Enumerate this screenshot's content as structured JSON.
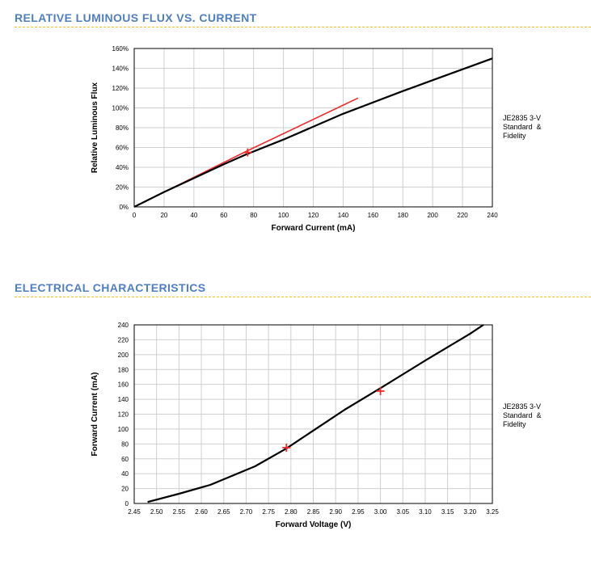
{
  "sections": {
    "flux_title": "RELATIVE LUMINOUS FLUX VS. CURRENT",
    "electrical_title": "ELECTRICAL CHARACTERISTICS"
  },
  "colors": {
    "title": "#4f7fc3",
    "rule": "#f3c21c",
    "series": "#000000",
    "reference": "#ee2b2b"
  },
  "chart_data": [
    {
      "type": "line",
      "xlabel": "Forward Current (mA)",
      "ylabel": "Relative Luminous Flux",
      "xlim": [
        0,
        240
      ],
      "ylim": [
        0,
        160
      ],
      "x_ticks": [
        0,
        20,
        40,
        60,
        80,
        100,
        120,
        140,
        160,
        180,
        200,
        220,
        240
      ],
      "y_ticks": [
        0,
        20,
        40,
        60,
        80,
        100,
        120,
        140,
        160
      ],
      "y_tick_labels": [
        "0%",
        "20%",
        "40%",
        "60%",
        "80%",
        "100%",
        "120%",
        "140%",
        "160%"
      ],
      "grid": true,
      "legend_position": "right",
      "legend_text": "JE2835 3-V\nStandard  &\nFidelity",
      "series": [
        {
          "name": "JE2835 3-V Standard & Fidelity",
          "x": [
            0,
            20,
            40,
            60,
            75,
            100,
            140,
            180,
            200,
            240
          ],
          "y": [
            0,
            15,
            29,
            43,
            53,
            68,
            94,
            117,
            128,
            150
          ]
        },
        {
          "x": [
            0,
            75,
            150
          ],
          "y": [
            0,
            56,
            110
          ]
        }
      ],
      "markers": [
        {
          "x": 76,
          "y": 55
        }
      ]
    },
    {
      "type": "line",
      "xlabel": "Forward Voltage (V)",
      "ylabel": "Forward Current (mA)",
      "xlim": [
        2.45,
        3.25
      ],
      "ylim": [
        0,
        240
      ],
      "x_ticks": [
        2.45,
        2.5,
        2.55,
        2.6,
        2.65,
        2.7,
        2.75,
        2.8,
        2.85,
        2.9,
        2.95,
        3.0,
        3.05,
        3.1,
        3.15,
        3.2,
        3.25
      ],
      "x_tick_labels": [
        "2.45",
        "2.50",
        "2.55",
        "2.60",
        "2.65",
        "2.70",
        "2.75",
        "2.80",
        "2.85",
        "2.90",
        "2.95",
        "3.00",
        "3.05",
        "3.10",
        "3.15",
        "3.20",
        "3.25"
      ],
      "y_ticks": [
        0,
        20,
        40,
        60,
        80,
        100,
        120,
        140,
        160,
        180,
        200,
        220,
        240
      ],
      "y_tick_labels": [
        "0",
        "20",
        "40",
        "60",
        "80",
        "100",
        "120",
        "140",
        "160",
        "180",
        "200",
        "220",
        "240"
      ],
      "grid": true,
      "legend_position": "right",
      "legend_text": "JE2835 3-V\nStandard  &\nFidelity",
      "series": [
        {
          "name": "JE2835 3-V Standard & Fidelity",
          "x": [
            2.48,
            2.55,
            2.62,
            2.72,
            2.79,
            2.85,
            2.92,
            3.0,
            3.1,
            3.2,
            3.23
          ],
          "y": [
            2,
            13,
            25,
            50,
            74,
            98,
            126,
            155,
            192,
            228,
            240
          ]
        }
      ],
      "markers": [
        {
          "x": 2.79,
          "y": 75
        },
        {
          "x": 3.0,
          "y": 151
        }
      ]
    }
  ]
}
